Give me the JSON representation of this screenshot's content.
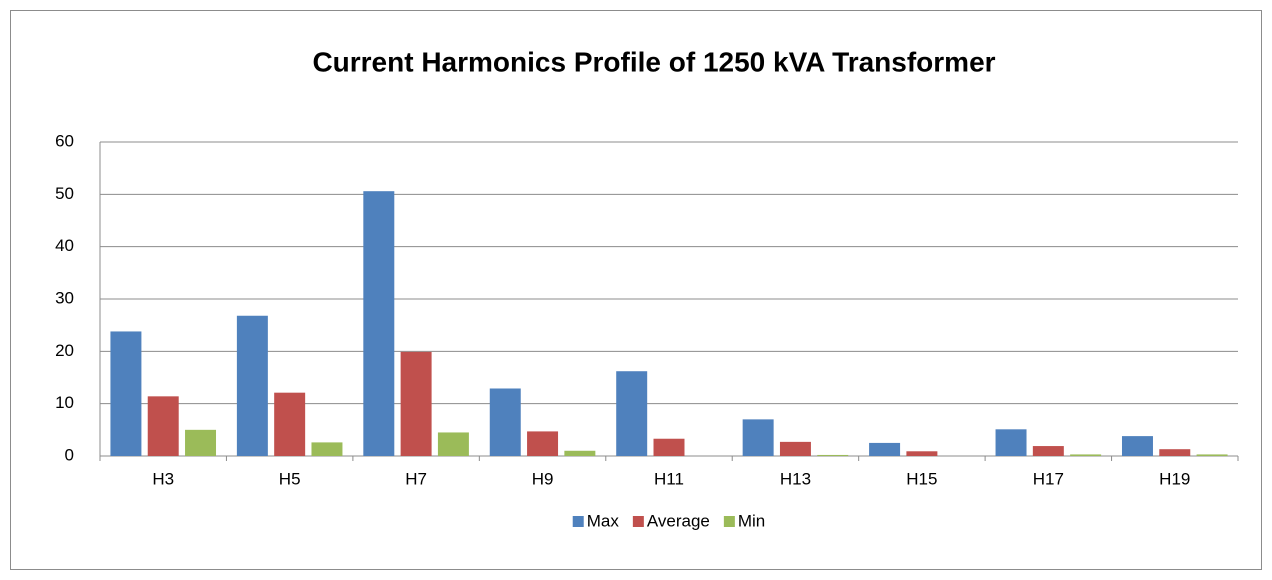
{
  "chart_data": {
    "type": "bar",
    "title": "Current Harmonics Profile of 1250 kVA Transformer",
    "categories": [
      "H3",
      "H5",
      "H7",
      "H9",
      "H11",
      "H13",
      "H15",
      "H17",
      "H19"
    ],
    "series": [
      {
        "name": "Max",
        "color": "#4f81bd",
        "values": [
          23.8,
          26.8,
          50.6,
          12.9,
          16.2,
          7.0,
          2.5,
          5.1,
          3.8
        ]
      },
      {
        "name": "Average",
        "color": "#c0504d",
        "values": [
          11.4,
          12.1,
          19.9,
          4.7,
          3.3,
          2.7,
          0.9,
          1.9,
          1.3
        ]
      },
      {
        "name": "Min",
        "color": "#9bbb59",
        "values": [
          5.0,
          2.6,
          4.5,
          1.0,
          0,
          0.2,
          0,
          0.3,
          0.3
        ]
      }
    ],
    "ylim": [
      0,
      60
    ],
    "yticks": [
      0,
      10,
      20,
      30,
      40,
      50,
      60
    ],
    "grid": true,
    "legend": "bottom"
  }
}
